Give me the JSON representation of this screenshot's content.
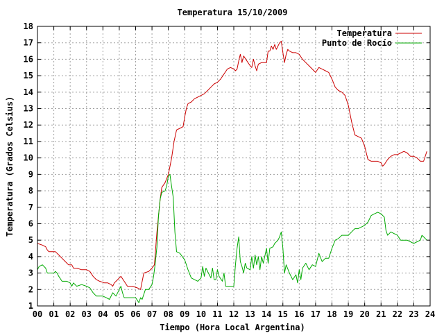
{
  "chart_data": {
    "type": "line",
    "title": "Temperatura 15/10/2009",
    "xlabel": "Tiempo (Hora Local Argentina)",
    "ylabel": "Temperatura (Grados Celsius)",
    "xlim": [
      0,
      24
    ],
    "ylim": [
      1,
      18
    ],
    "x_ticks": [
      0,
      1,
      2,
      3,
      4,
      5,
      6,
      7,
      8,
      9,
      10,
      11,
      12,
      13,
      14,
      15,
      16,
      17,
      18,
      19,
      20,
      21,
      22,
      23,
      24
    ],
    "x_tick_labels": [
      "00",
      "01",
      "02",
      "03",
      "04",
      "05",
      "06",
      "07",
      "08",
      "09",
      "10",
      "11",
      "12",
      "13",
      "14",
      "15",
      "16",
      "17",
      "18",
      "19",
      "20",
      "21",
      "22",
      "23",
      "24"
    ],
    "y_ticks": [
      1,
      2,
      3,
      4,
      5,
      6,
      7,
      8,
      9,
      10,
      11,
      12,
      13,
      14,
      15,
      16,
      17,
      18
    ],
    "grid": true,
    "legend_position": "top-right",
    "series": [
      {
        "name": "Temperatura",
        "color": "#cc0000",
        "points": [
          [
            0.0,
            4.8
          ],
          [
            0.3,
            4.7
          ],
          [
            0.5,
            4.6
          ],
          [
            0.6,
            4.4
          ],
          [
            0.7,
            4.3
          ],
          [
            1.1,
            4.3
          ],
          [
            1.3,
            4.1
          ],
          [
            1.5,
            3.9
          ],
          [
            1.7,
            3.7
          ],
          [
            1.9,
            3.5
          ],
          [
            2.1,
            3.5
          ],
          [
            2.2,
            3.3
          ],
          [
            2.4,
            3.3
          ],
          [
            2.7,
            3.2
          ],
          [
            3.0,
            3.2
          ],
          [
            3.2,
            3.1
          ],
          [
            3.4,
            2.8
          ],
          [
            3.6,
            2.6
          ],
          [
            3.8,
            2.5
          ],
          [
            4.1,
            2.4
          ],
          [
            4.3,
            2.4
          ],
          [
            4.5,
            2.3
          ],
          [
            4.6,
            2.2
          ],
          [
            4.7,
            2.4
          ],
          [
            4.9,
            2.6
          ],
          [
            5.0,
            2.7
          ],
          [
            5.1,
            2.8
          ],
          [
            5.3,
            2.5
          ],
          [
            5.5,
            2.2
          ],
          [
            5.8,
            2.2
          ],
          [
            6.1,
            2.1
          ],
          [
            6.3,
            2.0
          ],
          [
            6.5,
            3.0
          ],
          [
            6.8,
            3.1
          ],
          [
            7.0,
            3.3
          ],
          [
            7.15,
            3.5
          ],
          [
            7.3,
            5.5
          ],
          [
            7.5,
            7.5
          ],
          [
            7.6,
            8.2
          ],
          [
            7.8,
            8.5
          ],
          [
            8.0,
            9.0
          ],
          [
            8.2,
            10.0
          ],
          [
            8.35,
            11.0
          ],
          [
            8.5,
            11.7
          ],
          [
            8.7,
            11.8
          ],
          [
            8.9,
            11.9
          ],
          [
            9.0,
            12.5
          ],
          [
            9.1,
            13.0
          ],
          [
            9.2,
            13.3
          ],
          [
            9.4,
            13.4
          ],
          [
            9.6,
            13.6
          ],
          [
            9.8,
            13.7
          ],
          [
            10.0,
            13.8
          ],
          [
            10.2,
            13.9
          ],
          [
            10.4,
            14.1
          ],
          [
            10.6,
            14.3
          ],
          [
            10.8,
            14.5
          ],
          [
            11.0,
            14.6
          ],
          [
            11.2,
            14.8
          ],
          [
            11.4,
            15.1
          ],
          [
            11.6,
            15.4
          ],
          [
            11.8,
            15.5
          ],
          [
            12.0,
            15.4
          ],
          [
            12.1,
            15.3
          ],
          [
            12.2,
            15.4
          ],
          [
            12.3,
            15.9
          ],
          [
            12.4,
            16.3
          ],
          [
            12.5,
            15.8
          ],
          [
            12.6,
            16.2
          ],
          [
            12.8,
            15.9
          ],
          [
            13.0,
            15.6
          ],
          [
            13.1,
            15.5
          ],
          [
            13.2,
            16.0
          ],
          [
            13.3,
            15.6
          ],
          [
            13.4,
            15.3
          ],
          [
            13.5,
            15.7
          ],
          [
            13.7,
            15.8
          ],
          [
            14.0,
            15.8
          ],
          [
            14.1,
            16.5
          ],
          [
            14.2,
            16.5
          ],
          [
            14.3,
            16.8
          ],
          [
            14.4,
            16.6
          ],
          [
            14.5,
            16.9
          ],
          [
            14.6,
            16.6
          ],
          [
            14.7,
            16.8
          ],
          [
            14.8,
            17.0
          ],
          [
            14.9,
            17.1
          ],
          [
            15.0,
            16.4
          ],
          [
            15.1,
            15.8
          ],
          [
            15.2,
            16.3
          ],
          [
            15.3,
            16.6
          ],
          [
            15.4,
            16.5
          ],
          [
            15.6,
            16.4
          ],
          [
            15.8,
            16.4
          ],
          [
            16.0,
            16.3
          ],
          [
            16.2,
            16.0
          ],
          [
            16.4,
            15.8
          ],
          [
            16.6,
            15.6
          ],
          [
            16.8,
            15.4
          ],
          [
            17.0,
            15.2
          ],
          [
            17.2,
            15.5
          ],
          [
            17.4,
            15.4
          ],
          [
            17.6,
            15.3
          ],
          [
            17.8,
            15.2
          ],
          [
            18.0,
            14.8
          ],
          [
            18.2,
            14.3
          ],
          [
            18.4,
            14.1
          ],
          [
            18.6,
            14.0
          ],
          [
            18.8,
            13.8
          ],
          [
            19.0,
            13.2
          ],
          [
            19.2,
            12.2
          ],
          [
            19.4,
            11.4
          ],
          [
            19.6,
            11.3
          ],
          [
            19.8,
            11.2
          ],
          [
            20.0,
            10.7
          ],
          [
            20.2,
            9.9
          ],
          [
            20.4,
            9.8
          ],
          [
            20.6,
            9.8
          ],
          [
            20.8,
            9.8
          ],
          [
            21.0,
            9.7
          ],
          [
            21.1,
            9.5
          ],
          [
            21.2,
            9.6
          ],
          [
            21.4,
            9.9
          ],
          [
            21.6,
            10.1
          ],
          [
            21.8,
            10.2
          ],
          [
            22.0,
            10.2
          ],
          [
            22.2,
            10.3
          ],
          [
            22.4,
            10.4
          ],
          [
            22.6,
            10.3
          ],
          [
            22.8,
            10.1
          ],
          [
            23.0,
            10.1
          ],
          [
            23.2,
            10.0
          ],
          [
            23.4,
            9.8
          ],
          [
            23.6,
            9.8
          ],
          [
            23.8,
            10.4
          ]
        ]
      },
      {
        "name": "Punto de Rocío",
        "color": "#00aa00",
        "points": [
          [
            0.0,
            3.2
          ],
          [
            0.1,
            3.4
          ],
          [
            0.3,
            3.5
          ],
          [
            0.5,
            3.3
          ],
          [
            0.6,
            3.0
          ],
          [
            0.8,
            3.0
          ],
          [
            1.0,
            3.0
          ],
          [
            1.1,
            3.1
          ],
          [
            1.2,
            3.0
          ],
          [
            1.3,
            2.8
          ],
          [
            1.5,
            2.5
          ],
          [
            1.8,
            2.5
          ],
          [
            2.0,
            2.4
          ],
          [
            2.1,
            2.2
          ],
          [
            2.2,
            2.4
          ],
          [
            2.4,
            2.2
          ],
          [
            2.7,
            2.3
          ],
          [
            3.0,
            2.2
          ],
          [
            3.2,
            2.1
          ],
          [
            3.4,
            1.8
          ],
          [
            3.6,
            1.6
          ],
          [
            4.0,
            1.6
          ],
          [
            4.2,
            1.5
          ],
          [
            4.4,
            1.4
          ],
          [
            4.6,
            1.8
          ],
          [
            4.8,
            1.6
          ],
          [
            5.0,
            2.0
          ],
          [
            5.1,
            2.2
          ],
          [
            5.2,
            1.8
          ],
          [
            5.3,
            1.5
          ],
          [
            5.5,
            1.5
          ],
          [
            5.8,
            1.5
          ],
          [
            6.0,
            1.5
          ],
          [
            6.2,
            1.2
          ],
          [
            6.3,
            1.5
          ],
          [
            6.4,
            1.4
          ],
          [
            6.6,
            2.0
          ],
          [
            6.8,
            2.0
          ],
          [
            7.0,
            2.3
          ],
          [
            7.1,
            2.8
          ],
          [
            7.2,
            3.6
          ],
          [
            7.3,
            4.6
          ],
          [
            7.4,
            6.5
          ],
          [
            7.5,
            7.5
          ],
          [
            7.6,
            7.9
          ],
          [
            7.8,
            8.0
          ],
          [
            7.9,
            8.3
          ],
          [
            8.0,
            8.9
          ],
          [
            8.1,
            9.0
          ],
          [
            8.15,
            8.6
          ],
          [
            8.3,
            7.6
          ],
          [
            8.4,
            5.5
          ],
          [
            8.5,
            4.3
          ],
          [
            8.7,
            4.2
          ],
          [
            9.0,
            3.8
          ],
          [
            9.2,
            3.2
          ],
          [
            9.4,
            2.7
          ],
          [
            9.6,
            2.6
          ],
          [
            9.8,
            2.5
          ],
          [
            10.0,
            2.7
          ],
          [
            10.1,
            3.4
          ],
          [
            10.2,
            2.8
          ],
          [
            10.3,
            3.3
          ],
          [
            10.5,
            2.9
          ],
          [
            10.6,
            2.7
          ],
          [
            10.7,
            3.3
          ],
          [
            10.8,
            2.6
          ],
          [
            10.9,
            2.6
          ],
          [
            11.0,
            3.2
          ],
          [
            11.1,
            2.8
          ],
          [
            11.3,
            2.5
          ],
          [
            11.4,
            3.0
          ],
          [
            11.5,
            2.2
          ],
          [
            11.7,
            2.2
          ],
          [
            12.0,
            2.2
          ],
          [
            12.1,
            3.5
          ],
          [
            12.2,
            4.5
          ],
          [
            12.3,
            5.2
          ],
          [
            12.4,
            3.7
          ],
          [
            12.5,
            3.4
          ],
          [
            12.6,
            3.0
          ],
          [
            12.7,
            3.6
          ],
          [
            12.8,
            3.3
          ],
          [
            13.0,
            3.2
          ],
          [
            13.1,
            4.0
          ],
          [
            13.2,
            3.3
          ],
          [
            13.3,
            4.1
          ],
          [
            13.4,
            3.5
          ],
          [
            13.5,
            4.0
          ],
          [
            13.6,
            3.2
          ],
          [
            13.7,
            4.0
          ],
          [
            13.8,
            3.6
          ],
          [
            14.0,
            4.5
          ],
          [
            14.1,
            3.6
          ],
          [
            14.2,
            4.5
          ],
          [
            14.4,
            4.6
          ],
          [
            14.5,
            4.8
          ],
          [
            14.7,
            5.0
          ],
          [
            14.8,
            5.2
          ],
          [
            14.9,
            5.5
          ],
          [
            15.0,
            4.5
          ],
          [
            15.1,
            3.0
          ],
          [
            15.2,
            3.5
          ],
          [
            15.4,
            3.0
          ],
          [
            15.6,
            2.6
          ],
          [
            15.8,
            2.9
          ],
          [
            15.9,
            2.4
          ],
          [
            16.0,
            3.2
          ],
          [
            16.1,
            2.6
          ],
          [
            16.2,
            3.3
          ],
          [
            16.4,
            3.6
          ],
          [
            16.6,
            3.2
          ],
          [
            16.8,
            3.5
          ],
          [
            17.0,
            3.4
          ],
          [
            17.2,
            4.2
          ],
          [
            17.4,
            3.7
          ],
          [
            17.6,
            3.9
          ],
          [
            17.8,
            3.9
          ],
          [
            18.0,
            4.5
          ],
          [
            18.2,
            5.0
          ],
          [
            18.4,
            5.1
          ],
          [
            18.6,
            5.3
          ],
          [
            18.8,
            5.3
          ],
          [
            19.0,
            5.3
          ],
          [
            19.2,
            5.5
          ],
          [
            19.4,
            5.7
          ],
          [
            19.6,
            5.7
          ],
          [
            19.8,
            5.8
          ],
          [
            20.0,
            5.9
          ],
          [
            20.2,
            6.1
          ],
          [
            20.4,
            6.5
          ],
          [
            20.6,
            6.6
          ],
          [
            20.8,
            6.7
          ],
          [
            21.0,
            6.6
          ],
          [
            21.2,
            6.4
          ],
          [
            21.3,
            5.6
          ],
          [
            21.4,
            5.3
          ],
          [
            21.6,
            5.5
          ],
          [
            21.8,
            5.4
          ],
          [
            22.0,
            5.3
          ],
          [
            22.2,
            5.0
          ],
          [
            22.4,
            5.0
          ],
          [
            22.6,
            5.0
          ],
          [
            22.8,
            4.9
          ],
          [
            23.0,
            4.8
          ],
          [
            23.2,
            4.9
          ],
          [
            23.4,
            5.0
          ],
          [
            23.5,
            5.3
          ],
          [
            23.6,
            5.2
          ],
          [
            23.8,
            5.0
          ]
        ]
      }
    ]
  }
}
